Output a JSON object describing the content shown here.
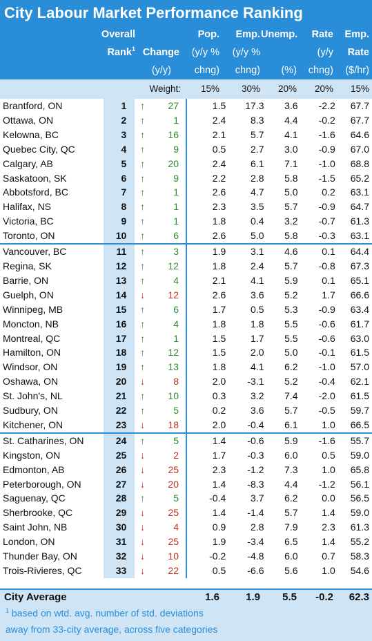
{
  "title": "City Labour Market Performance Ranking",
  "header": {
    "overall_line1": "Overall",
    "overall_line2": "Rank",
    "overall_sup": "1",
    "change_line2": "Change",
    "change_line3": "(y/y)",
    "pop_line1": "Pop.",
    "pop_line2": "(y/y %",
    "pop_line3": "chng)",
    "emp_line1": "Emp.",
    "emp_line2": "(y/y %",
    "emp_line3": "chng)",
    "unemp_line1": "Unemp.",
    "unemp_line3": "(%)",
    "urate_line1": "Rate",
    "urate_line2": "(y/y",
    "urate_line3": "chng)",
    "erate_line1": "Emp.",
    "erate_line2": "Rate",
    "erate_line3": "($/hr)"
  },
  "weights": {
    "label": "Weight:",
    "pop": "15%",
    "emp": "30%",
    "unemp": "20%",
    "urate": "20%",
    "erate": "15%"
  },
  "rows": [
    {
      "city": "Brantford, ON",
      "rank": "1",
      "dir": "up",
      "change": "27",
      "pop": "1.5",
      "emp": "17.3",
      "unemp": "3.6",
      "urate": "-2.2",
      "erate": "67.7"
    },
    {
      "city": "Ottawa, ON",
      "rank": "2",
      "dir": "up",
      "change": "1",
      "pop": "2.4",
      "emp": "8.3",
      "unemp": "4.4",
      "urate": "-0.2",
      "erate": "67.7"
    },
    {
      "city": "Kelowna, BC",
      "rank": "3",
      "dir": "up",
      "change": "16",
      "pop": "2.1",
      "emp": "5.7",
      "unemp": "4.1",
      "urate": "-1.6",
      "erate": "64.6"
    },
    {
      "city": "Quebec City, QC",
      "rank": "4",
      "dir": "up",
      "change": "9",
      "pop": "0.5",
      "emp": "2.7",
      "unemp": "3.0",
      "urate": "-0.9",
      "erate": "67.0"
    },
    {
      "city": "Calgary, AB",
      "rank": "5",
      "dir": "up",
      "change": "20",
      "pop": "2.4",
      "emp": "6.1",
      "unemp": "7.1",
      "urate": "-1.0",
      "erate": "68.8"
    },
    {
      "city": "Saskatoon, SK",
      "rank": "6",
      "dir": "up",
      "change": "9",
      "pop": "2.2",
      "emp": "2.8",
      "unemp": "5.8",
      "urate": "-1.5",
      "erate": "65.2"
    },
    {
      "city": "Abbotsford, BC",
      "rank": "7",
      "dir": "up",
      "change": "1",
      "pop": "2.6",
      "emp": "4.7",
      "unemp": "5.0",
      "urate": "0.2",
      "erate": "63.1"
    },
    {
      "city": "Halifax, NS",
      "rank": "8",
      "dir": "up",
      "change": "1",
      "pop": "2.3",
      "emp": "3.5",
      "unemp": "5.7",
      "urate": "-0.9",
      "erate": "64.7"
    },
    {
      "city": "Victoria, BC",
      "rank": "9",
      "dir": "up",
      "change": "1",
      "pop": "1.8",
      "emp": "0.4",
      "unemp": "3.2",
      "urate": "-0.7",
      "erate": "61.3"
    },
    {
      "city": "Toronto, ON",
      "rank": "10",
      "dir": "up",
      "change": "6",
      "pop": "2.6",
      "emp": "5.0",
      "unemp": "5.8",
      "urate": "-0.3",
      "erate": "63.1"
    },
    {
      "city": "Vancouver, BC",
      "rank": "11",
      "dir": "up",
      "change": "3",
      "pop": "1.9",
      "emp": "3.1",
      "unemp": "4.6",
      "urate": "0.1",
      "erate": "64.4"
    },
    {
      "city": "Regina, SK",
      "rank": "12",
      "dir": "up",
      "change": "12",
      "pop": "1.8",
      "emp": "2.4",
      "unemp": "5.7",
      "urate": "-0.8",
      "erate": "67.3"
    },
    {
      "city": "Barrie, ON",
      "rank": "13",
      "dir": "up",
      "change": "4",
      "pop": "2.1",
      "emp": "4.1",
      "unemp": "5.9",
      "urate": "0.1",
      "erate": "65.1"
    },
    {
      "city": "Guelph, ON",
      "rank": "14",
      "dir": "down",
      "change": "12",
      "pop": "2.6",
      "emp": "3.6",
      "unemp": "5.2",
      "urate": "1.7",
      "erate": "66.6"
    },
    {
      "city": "Winnipeg, MB",
      "rank": "15",
      "dir": "up",
      "change": "6",
      "pop": "1.7",
      "emp": "0.5",
      "unemp": "5.3",
      "urate": "-0.9",
      "erate": "63.4"
    },
    {
      "city": "Moncton, NB",
      "rank": "16",
      "dir": "up",
      "change": "4",
      "pop": "1.8",
      "emp": "1.8",
      "unemp": "5.5",
      "urate": "-0.6",
      "erate": "61.7"
    },
    {
      "city": "Montreal, QC",
      "rank": "17",
      "dir": "up",
      "change": "1",
      "pop": "1.5",
      "emp": "1.7",
      "unemp": "5.5",
      "urate": "-0.6",
      "erate": "63.0"
    },
    {
      "city": "Hamilton, ON",
      "rank": "18",
      "dir": "up",
      "change": "12",
      "pop": "1.5",
      "emp": "2.0",
      "unemp": "5.0",
      "urate": "-0.1",
      "erate": "61.5"
    },
    {
      "city": "Windsor, ON",
      "rank": "19",
      "dir": "up",
      "change": "13",
      "pop": "1.8",
      "emp": "4.1",
      "unemp": "6.2",
      "urate": "-1.0",
      "erate": "57.0"
    },
    {
      "city": "Oshawa, ON",
      "rank": "20",
      "dir": "down",
      "change": "8",
      "pop": "2.0",
      "emp": "-3.1",
      "unemp": "5.2",
      "urate": "-0.4",
      "erate": "62.1"
    },
    {
      "city": "St. John's, NL",
      "rank": "21",
      "dir": "up",
      "change": "10",
      "pop": "0.3",
      "emp": "3.2",
      "unemp": "7.4",
      "urate": "-2.0",
      "erate": "61.5"
    },
    {
      "city": "Sudbury, ON",
      "rank": "22",
      "dir": "up",
      "change": "5",
      "pop": "0.2",
      "emp": "3.6",
      "unemp": "5.7",
      "urate": "-0.5",
      "erate": "59.7"
    },
    {
      "city": "Kitchener, ON",
      "rank": "23",
      "dir": "down",
      "change": "18",
      "pop": "2.0",
      "emp": "-0.4",
      "unemp": "6.1",
      "urate": "1.0",
      "erate": "66.5"
    },
    {
      "city": "St. Catharines, ON",
      "rank": "24",
      "dir": "up",
      "change": "5",
      "pop": "1.4",
      "emp": "-0.6",
      "unemp": "5.9",
      "urate": "-1.6",
      "erate": "55.7"
    },
    {
      "city": "Kingston, ON",
      "rank": "25",
      "dir": "down",
      "change": "2",
      "pop": "1.7",
      "emp": "-0.3",
      "unemp": "6.0",
      "urate": "0.5",
      "erate": "59.0"
    },
    {
      "city": "Edmonton, AB",
      "rank": "26",
      "dir": "down",
      "change": "25",
      "pop": "2.3",
      "emp": "-1.2",
      "unemp": "7.3",
      "urate": "1.0",
      "erate": "65.8"
    },
    {
      "city": "Peterborough, ON",
      "rank": "27",
      "dir": "down",
      "change": "20",
      "pop": "1.4",
      "emp": "-8.3",
      "unemp": "4.4",
      "urate": "-1.2",
      "erate": "56.1"
    },
    {
      "city": "Saguenay, QC",
      "rank": "28",
      "dir": "up",
      "change": "5",
      "pop": "-0.4",
      "emp": "3.7",
      "unemp": "6.2",
      "urate": "0.0",
      "erate": "56.5"
    },
    {
      "city": "Sherbrooke, QC",
      "rank": "29",
      "dir": "down",
      "change": "25",
      "pop": "1.4",
      "emp": "-1.4",
      "unemp": "5.7",
      "urate": "1.4",
      "erate": "59.0"
    },
    {
      "city": "Saint John, NB",
      "rank": "30",
      "dir": "down",
      "change": "4",
      "pop": "0.9",
      "emp": "2.8",
      "unemp": "7.9",
      "urate": "2.3",
      "erate": "61.3"
    },
    {
      "city": "London, ON",
      "rank": "31",
      "dir": "down",
      "change": "25",
      "pop": "1.9",
      "emp": "-3.4",
      "unemp": "6.5",
      "urate": "1.4",
      "erate": "55.2"
    },
    {
      "city": "Thunder Bay, ON",
      "rank": "32",
      "dir": "down",
      "change": "10",
      "pop": "-0.2",
      "emp": "-4.8",
      "unemp": "6.0",
      "urate": "0.7",
      "erate": "58.3"
    },
    {
      "city": "Trois-Rivieres, QC",
      "rank": "33",
      "dir": "down",
      "change": "22",
      "pop": "0.5",
      "emp": "-6.6",
      "unemp": "5.6",
      "urate": "1.0",
      "erate": "54.6"
    }
  ],
  "average": {
    "label": "City Average",
    "pop": "1.6",
    "emp": "1.9",
    "unemp": "5.5",
    "urate": "-0.2",
    "erate": "62.3"
  },
  "footnote": {
    "sup": "1",
    "line1": " based on wtd. avg. number of std. deviations",
    "line2": "away from 33-city average, across five categories"
  },
  "colors": {
    "header_blue": "#2a8dd8",
    "light_blue": "#cfe5f6",
    "up_green": "#2e8b2e",
    "down_red": "#c0321e"
  },
  "arrows": {
    "up": "↑",
    "down": "↓"
  }
}
